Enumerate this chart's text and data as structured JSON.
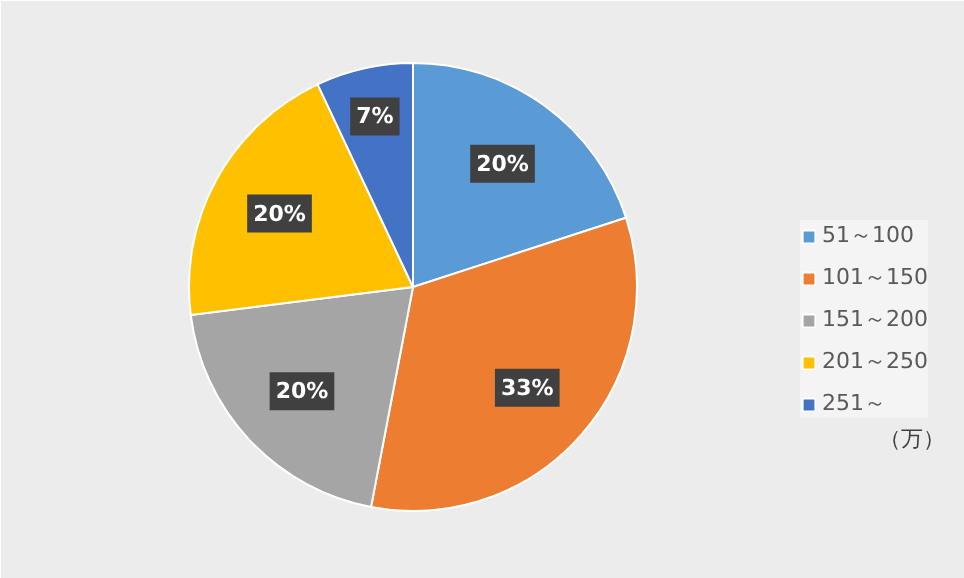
{
  "chart_data": {
    "type": "pie",
    "categories": [
      "51～100",
      "101～150",
      "151～200",
      "201～250",
      "251～"
    ],
    "values": [
      20,
      33,
      20,
      20,
      7
    ],
    "colors": [
      "#5b9bd5",
      "#ed7d31",
      "#a5a5a5",
      "#ffc000",
      "#4472c4"
    ],
    "value_labels": [
      "20%",
      "33%",
      "20%",
      "20%",
      "7%"
    ],
    "legend": "right",
    "annotations": [
      "（万）"
    ]
  }
}
